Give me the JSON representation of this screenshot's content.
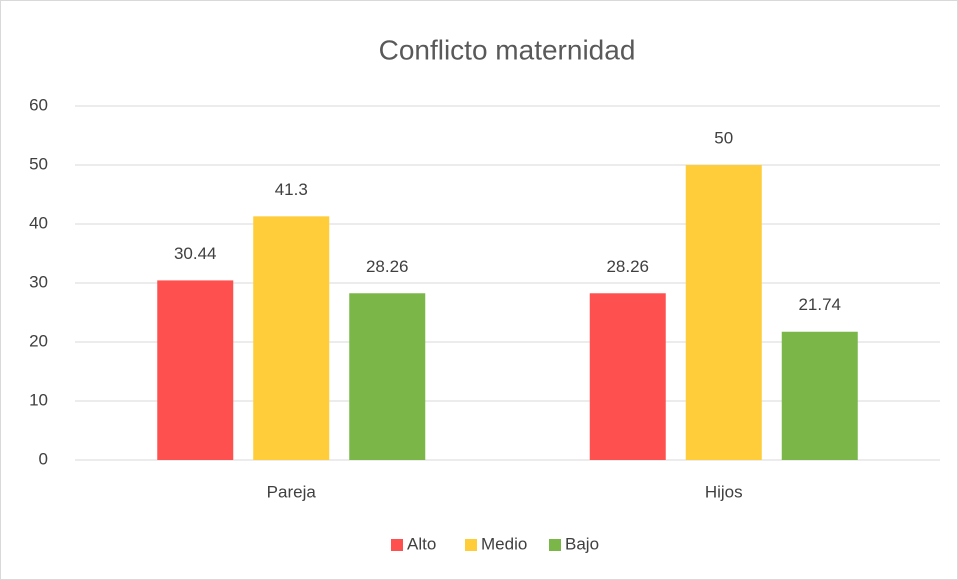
{
  "chart_data": {
    "type": "bar",
    "title": "Conflicto maternidad",
    "categories": [
      "Pareja",
      "Hijos"
    ],
    "series": [
      {
        "name": "Alto",
        "color": "#ff5050",
        "values": [
          30.44,
          28.26
        ]
      },
      {
        "name": "Medio",
        "color": "#ffcc3a",
        "values": [
          41.3,
          50
        ]
      },
      {
        "name": "Bajo",
        "color": "#7ab648",
        "values": [
          28.26,
          21.74
        ]
      }
    ],
    "ylim": [
      0,
      60
    ],
    "yticks": [
      0,
      10,
      20,
      30,
      40,
      50,
      60
    ],
    "grid": true,
    "legend": "bottom"
  }
}
